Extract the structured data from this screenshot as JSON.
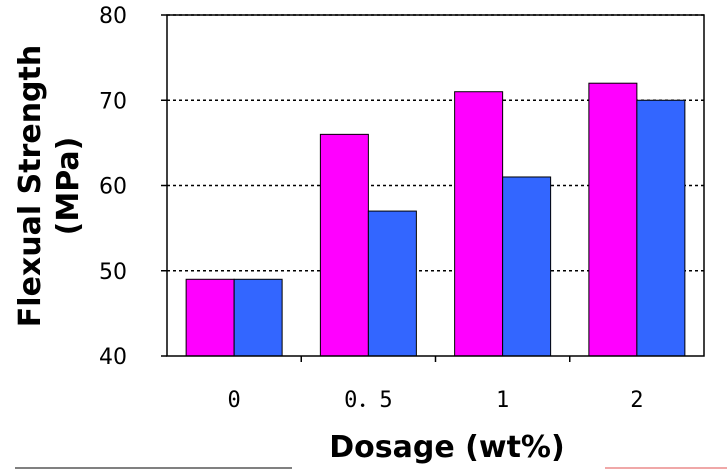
{
  "chart_data": {
    "type": "bar",
    "categories": [
      "0",
      "0.5",
      "1",
      "2"
    ],
    "category_labels": [
      "0",
      "0．5",
      "1",
      "2"
    ],
    "series": [
      {
        "values": [
          49,
          66,
          71,
          72
        ],
        "color": "#ff00ff"
      },
      {
        "values": [
          49,
          57,
          61,
          70
        ],
        "color": "#3366ff"
      }
    ],
    "title": "",
    "xlabel": "Dosage (wt%)",
    "ylabel_lines": [
      "Flexual Strength",
      "(MPa)"
    ],
    "ylim": [
      40,
      80
    ],
    "yticks": [
      "40",
      "50",
      "60",
      "70",
      "80"
    ],
    "grid": "horizontal dotted",
    "legend": "none"
  }
}
